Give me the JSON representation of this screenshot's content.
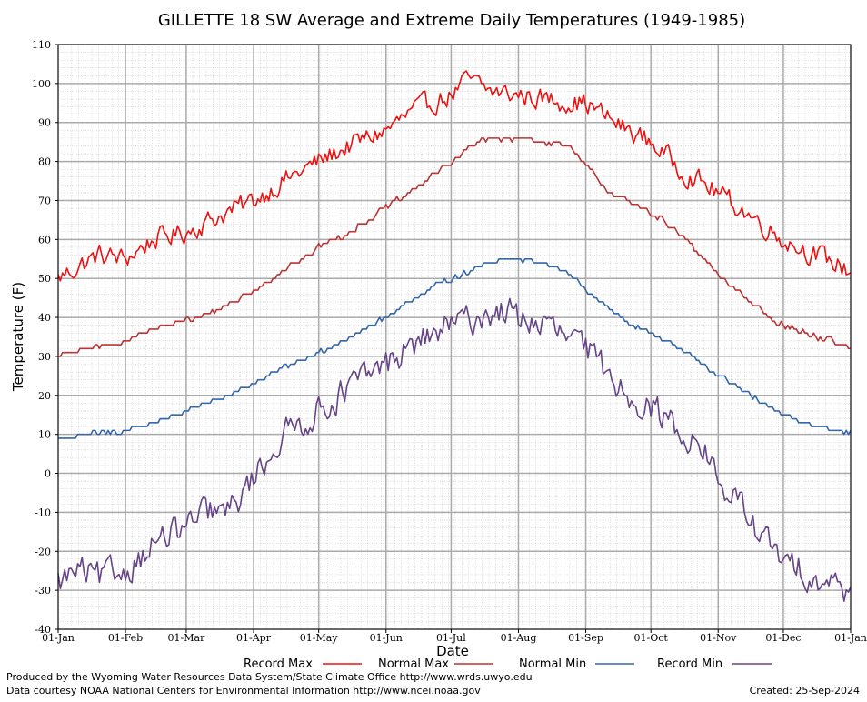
{
  "colors": {
    "record_max": "#ee1111",
    "normal_max": "#bb3333",
    "normal_min": "#3366aa",
    "record_min": "#664488",
    "major_grid": "#aaaaaa",
    "minor_grid": "#c8c8c8",
    "plot_background": "#e6e6e6"
  },
  "chart_data": {
    "type": "line",
    "title": "GILLETTE 18 SW Average and Extreme Daily Temperatures (1949-1985)",
    "xlabel": "Date",
    "ylabel": "Temperature (F)",
    "ylim": [
      -40,
      110
    ],
    "xlim": [
      1,
      366
    ],
    "grid": true,
    "legend_position": "bottom",
    "y_ticks": [
      -40,
      -30,
      -20,
      -10,
      0,
      10,
      20,
      30,
      40,
      50,
      60,
      70,
      80,
      90,
      100,
      110
    ],
    "x_ticks": [
      {
        "day": 1,
        "label": "01-Jan"
      },
      {
        "day": 32,
        "label": "01-Feb"
      },
      {
        "day": 60,
        "label": "01-Mar"
      },
      {
        "day": 91,
        "label": "01-Apr"
      },
      {
        "day": 121,
        "label": "01-May"
      },
      {
        "day": 152,
        "label": "01-Jun"
      },
      {
        "day": 182,
        "label": "01-Jul"
      },
      {
        "day": 213,
        "label": "01-Aug"
      },
      {
        "day": 244,
        "label": "01-Sep"
      },
      {
        "day": 274,
        "label": "01-Oct"
      },
      {
        "day": 305,
        "label": "01-Nov"
      },
      {
        "day": 335,
        "label": "01-Dec"
      },
      {
        "day": 366,
        "label": "01-Jan"
      }
    ],
    "x_units": "day of year",
    "series": [
      {
        "name": "Record Max",
        "color_key": "record_max",
        "x": [
          1,
          10,
          20,
          32,
          45,
          60,
          75,
          91,
          105,
          121,
          135,
          152,
          165,
          182,
          190,
          200,
          213,
          225,
          244,
          260,
          274,
          290,
          305,
          320,
          335,
          350,
          366
        ],
        "values": [
          50,
          53,
          56,
          55,
          60,
          62,
          66,
          70,
          75,
          80,
          84,
          88,
          93,
          97,
          101,
          98,
          97,
          96,
          95,
          89,
          85,
          77,
          72,
          66,
          60,
          56,
          52
        ],
        "noise": 3.2
      },
      {
        "name": "Normal Max",
        "color_key": "normal_max",
        "x": [
          1,
          15,
          32,
          45,
          60,
          75,
          91,
          105,
          121,
          135,
          152,
          165,
          182,
          195,
          205,
          213,
          225,
          235,
          244,
          255,
          265,
          274,
          290,
          305,
          320,
          335,
          350,
          366
        ],
        "values": [
          30,
          32,
          34,
          37,
          39,
          42,
          47,
          52,
          58,
          62,
          68,
          73,
          80,
          85,
          86,
          86,
          85,
          84,
          79,
          72,
          69,
          67,
          60,
          51,
          44,
          38,
          35,
          32
        ],
        "noise": 0.8
      },
      {
        "name": "Normal Min",
        "color_key": "normal_min",
        "x": [
          1,
          15,
          32,
          45,
          60,
          75,
          91,
          105,
          121,
          135,
          152,
          165,
          182,
          195,
          205,
          213,
          225,
          235,
          244,
          255,
          265,
          274,
          290,
          305,
          320,
          335,
          350,
          366
        ],
        "values": [
          9,
          10,
          11,
          13,
          16,
          19,
          23,
          27,
          31,
          35,
          40,
          45,
          50,
          53,
          55,
          55,
          54,
          52,
          47,
          42,
          38,
          36,
          31,
          25,
          20,
          15,
          12,
          10
        ],
        "noise": 0.6
      },
      {
        "name": "Record Min",
        "color_key": "record_min",
        "x": [
          1,
          10,
          20,
          32,
          45,
          60,
          70,
          80,
          91,
          105,
          121,
          135,
          152,
          165,
          182,
          195,
          205,
          213,
          225,
          244,
          255,
          265,
          274,
          290,
          300,
          305,
          315,
          325,
          335,
          345,
          355,
          366
        ],
        "values": [
          -28,
          -25,
          -27,
          -25,
          -18,
          -14,
          -10,
          -10,
          -1,
          10,
          16,
          22,
          28,
          33,
          38,
          40,
          42,
          40,
          38,
          32,
          25,
          20,
          17,
          10,
          5,
          -3,
          -8,
          -16,
          -23,
          -25,
          -28,
          -30
        ],
        "noise": 4.5
      }
    ]
  },
  "legend": {
    "items": [
      {
        "label": "Record Max",
        "color_key": "record_max"
      },
      {
        "label": "Normal Max",
        "color_key": "normal_max"
      },
      {
        "label": "Normal Min",
        "color_key": "normal_min"
      },
      {
        "label": "Record Min",
        "color_key": "record_min"
      }
    ]
  },
  "footer": {
    "produced_by": "Produced by the Wyoming Water Resources Data System/State Climate Office http://www.wrds.uwyo.edu",
    "data_courtesy": "Data courtesy NOAA National Centers for Environmental Information http://www.ncei.noaa.gov",
    "created": "Created:  25-Sep-2024"
  }
}
